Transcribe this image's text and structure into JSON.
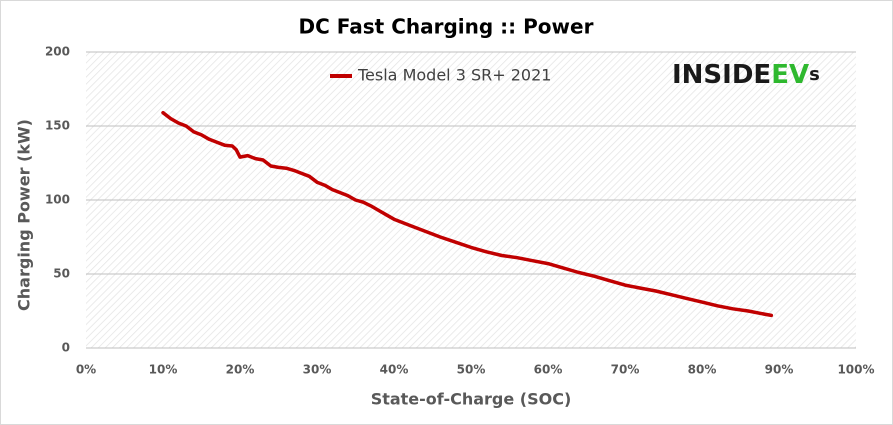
{
  "chart_data": {
    "type": "line",
    "title": "DC Fast Charging :: Power",
    "x_label": "State-of-Charge  (SOC)",
    "y_label": "Charging Power (kW)",
    "logo": [
      "INSIDE",
      "EV",
      "s"
    ],
    "x": [
      10,
      11,
      12,
      13,
      14,
      15,
      16,
      17,
      18,
      19,
      19.5,
      20,
      21,
      22,
      23,
      24,
      25,
      26,
      27,
      28,
      29,
      30,
      31,
      32,
      33,
      34,
      35,
      36,
      37,
      38,
      39,
      40,
      42,
      44,
      46,
      48,
      50,
      52,
      54,
      56,
      58,
      60,
      62,
      64,
      66,
      68,
      70,
      72,
      74,
      76,
      78,
      80,
      82,
      84,
      86,
      88,
      89
    ],
    "series": [
      {
        "name": "Tesla Model 3 SR+ 2021",
        "color": "#c00000",
        "values": [
          159,
          155,
          152,
          150,
          146,
          144,
          141,
          139,
          137,
          136.5,
          134,
          129,
          130,
          128,
          127,
          123,
          122,
          121.5,
          120,
          118,
          116,
          112,
          110,
          107,
          105,
          103,
          100,
          98.5,
          96,
          93,
          90,
          87,
          83,
          79,
          75,
          71.5,
          68,
          65,
          62.5,
          61,
          59,
          57,
          54,
          51,
          48.5,
          45.5,
          42.5,
          40.5,
          38.5,
          36,
          33.5,
          31,
          28.5,
          26.5,
          25,
          23,
          22
        ]
      }
    ],
    "xlim": [
      0,
      100
    ],
    "xticks": [
      {
        "value": 0,
        "label": "0%"
      },
      {
        "value": 10,
        "label": "10%"
      },
      {
        "value": 20,
        "label": "20%"
      },
      {
        "value": 30,
        "label": "30%"
      },
      {
        "value": 40,
        "label": "40%"
      },
      {
        "value": 50,
        "label": "50%"
      },
      {
        "value": 60,
        "label": "60%"
      },
      {
        "value": 70,
        "label": "70%"
      },
      {
        "value": 80,
        "label": "80%"
      },
      {
        "value": 90,
        "label": "90%"
      },
      {
        "value": 100,
        "label": "100%"
      }
    ],
    "ylim": [
      0,
      200
    ],
    "yticks": [
      0,
      50,
      100,
      150,
      200
    ],
    "grid": true
  }
}
